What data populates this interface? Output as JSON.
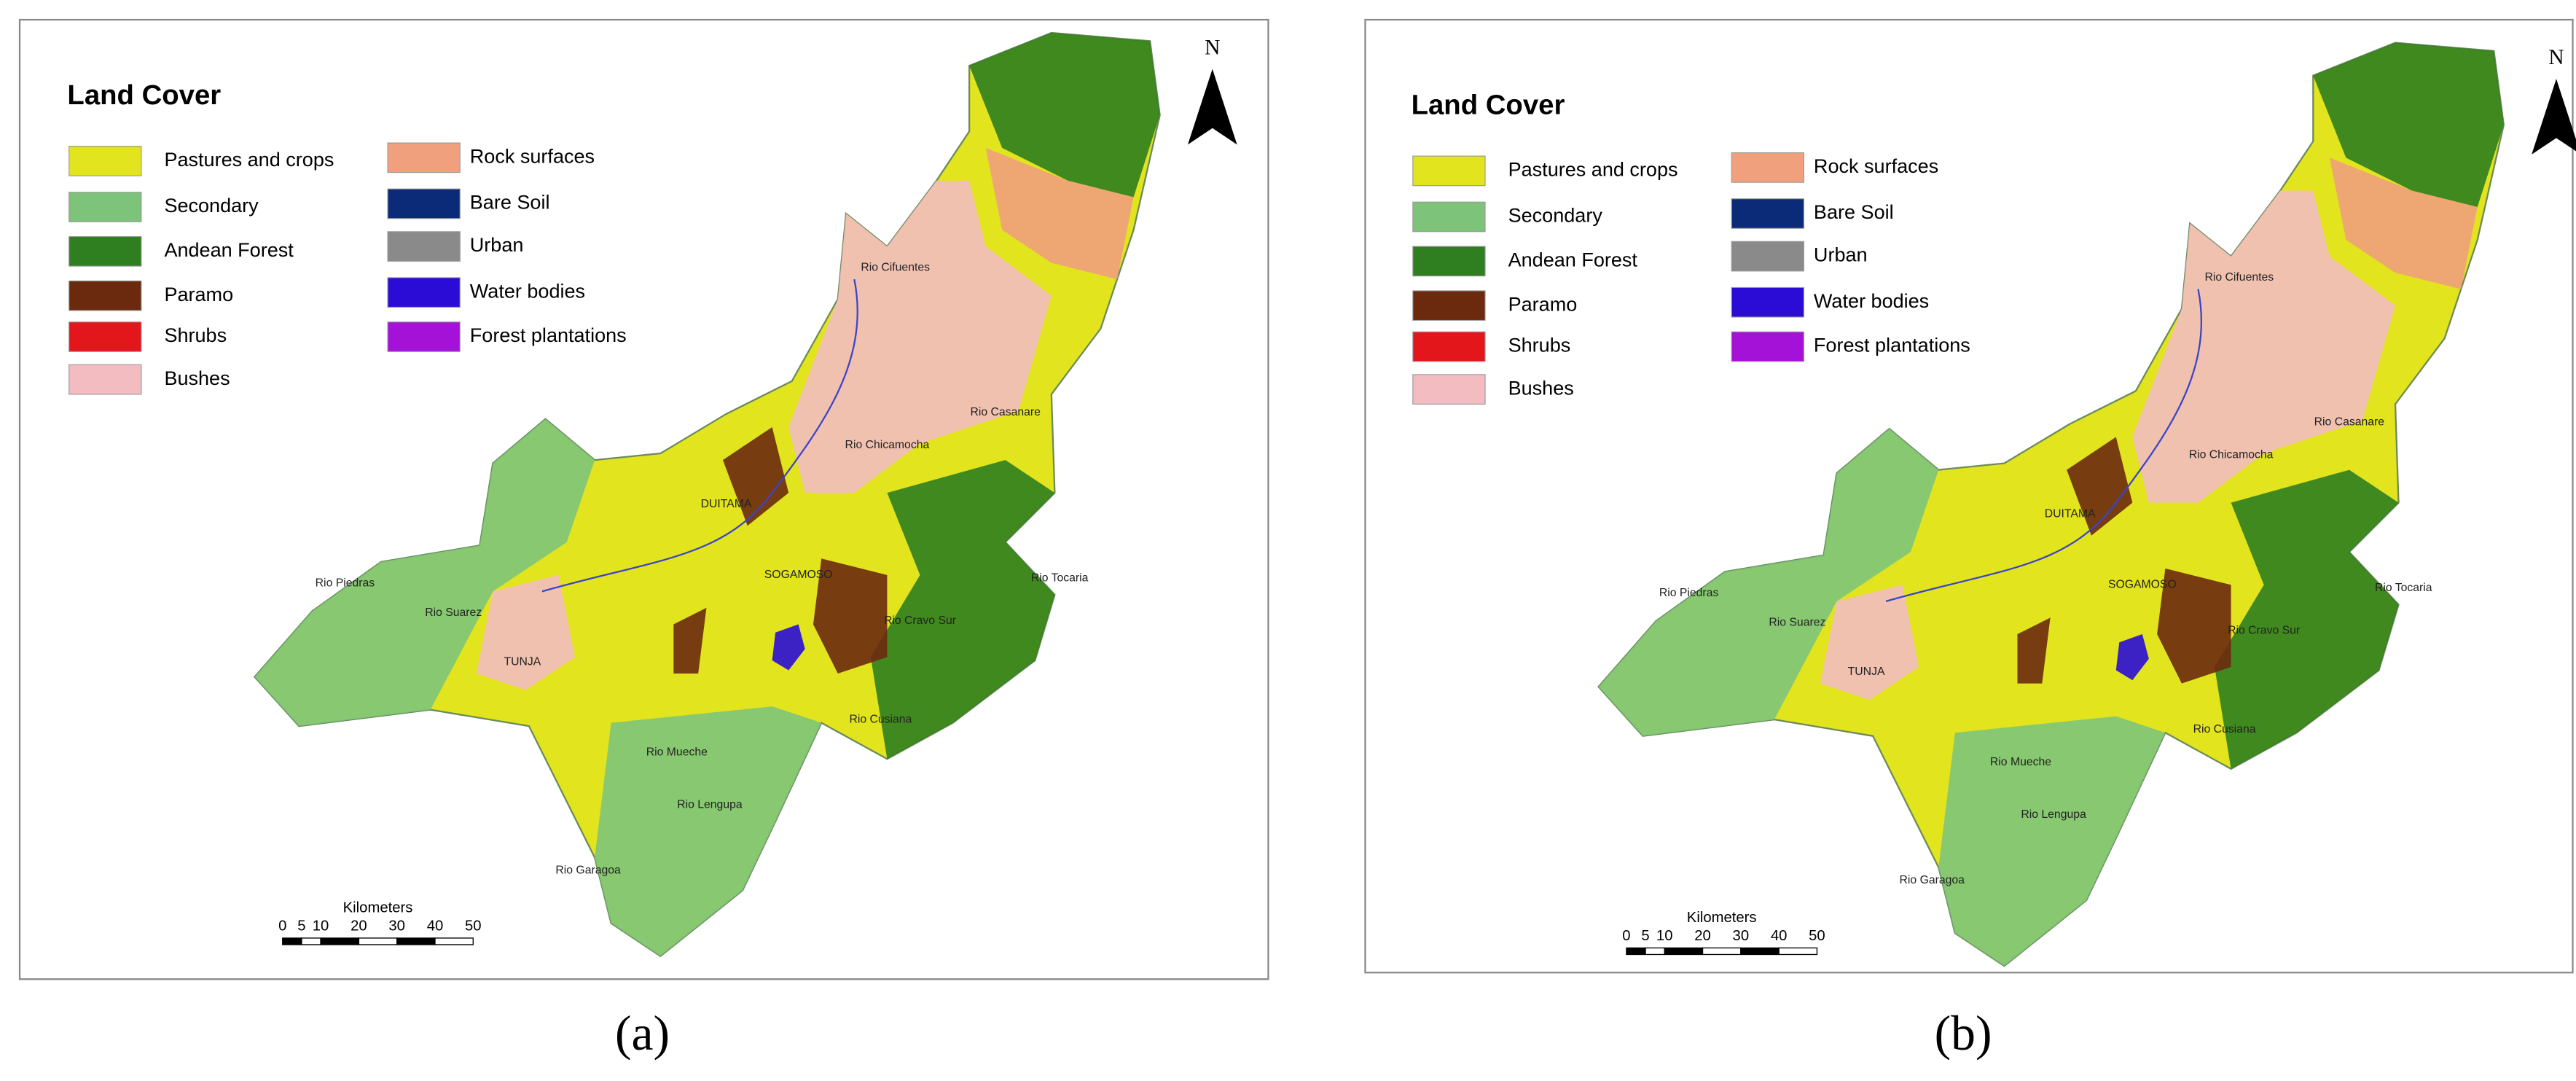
{
  "panels": [
    {
      "legend_title": "Land Cover",
      "legend": [
        {
          "label": "Pastures and crops",
          "color": "#e2e41e"
        },
        {
          "label": "Secondary",
          "color": "#7dc47a"
        },
        {
          "label": "Andean Forest",
          "color": "#2f7e1f"
        },
        {
          "label": "Paramo",
          "color": "#6b2a0e"
        },
        {
          "label": "Shrubs",
          "color": "#e3161b"
        },
        {
          "label": "Bushes",
          "color": "#f3bcc0"
        },
        {
          "label": "Rock surfaces",
          "color": "#f0a07c"
        },
        {
          "label": "Bare Soil",
          "color": "#0b2a78"
        },
        {
          "label": "Urban",
          "color": "#8a8a8a"
        },
        {
          "label": "Water bodies",
          "color": "#2a0cd6"
        },
        {
          "label": "Forest plantations",
          "color": "#a412d8"
        }
      ],
      "places": [
        "Rio Cifuentes",
        "Rio Casanare",
        "Rio Chicamocha",
        "DUITAMA",
        "Rio Piedras",
        "Rio Suarez",
        "SOGAMOSO",
        "Rio Tocaria",
        "Rio Cravo Sur",
        "TUNJA",
        "Rio Cusiana",
        "Rio Mueche",
        "Rio Lengupa",
        "Rio Garagoa"
      ],
      "scale": {
        "title": "Kilometers",
        "ticks": [
          0,
          5,
          10,
          20,
          30,
          40,
          50
        ]
      },
      "north": "N",
      "caption": "(a)"
    },
    {
      "legend_title": "Land Cover",
      "legend": [
        {
          "label": "Pastures and crops",
          "color": "#e2e41e"
        },
        {
          "label": "Secondary",
          "color": "#7dc47a"
        },
        {
          "label": "Andean Forest",
          "color": "#2f7e1f"
        },
        {
          "label": "Paramo",
          "color": "#6b2a0e"
        },
        {
          "label": "Shrubs",
          "color": "#e3161b"
        },
        {
          "label": "Bushes",
          "color": "#f3bcc0"
        },
        {
          "label": "Rock surfaces",
          "color": "#f0a07c"
        },
        {
          "label": "Bare Soil",
          "color": "#0b2a78"
        },
        {
          "label": "Urban",
          "color": "#8a8a8a"
        },
        {
          "label": "Water bodies",
          "color": "#2a0cd6"
        },
        {
          "label": "Forest plantations",
          "color": "#a412d8"
        }
      ],
      "places": [
        "Rio Cifuentes",
        "Rio Casanare",
        "Rio Chicamocha",
        "DUITAMA",
        "Rio Piedras",
        "Rio Suarez",
        "SOGAMOSO",
        "Rio Tocaria",
        "Rio Cravo Sur",
        "TUNJA",
        "Rio Cusiana",
        "Rio Mueche",
        "Rio Lengupa",
        "Rio Garagoa"
      ],
      "scale": {
        "title": "Kilometers",
        "ticks": [
          0,
          5,
          10,
          20,
          30,
          40,
          50
        ]
      },
      "north": "N",
      "caption": "(b)"
    }
  ]
}
